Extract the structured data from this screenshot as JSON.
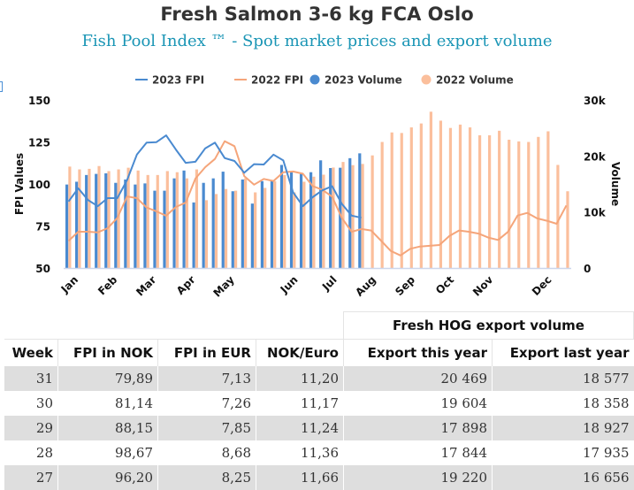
{
  "title": "Fresh Salmon 3-6 kg FCA Oslo",
  "subtitle": "Fish Pool Index ™ - Spot market prices and export volume",
  "chart_data": {
    "type": "bar+line",
    "x_unit": "week",
    "weeks": [
      1,
      2,
      3,
      4,
      5,
      6,
      7,
      8,
      9,
      10,
      11,
      12,
      13,
      14,
      15,
      16,
      17,
      18,
      19,
      20,
      21,
      22,
      23,
      24,
      25,
      26,
      27,
      28,
      29,
      30,
      31,
      32,
      33,
      34,
      35,
      36,
      37,
      38,
      39,
      40,
      41,
      42,
      43,
      44,
      45,
      46,
      47,
      48,
      49,
      50,
      51,
      52
    ],
    "month_labels": [
      "Jan",
      "Feb",
      "Mar",
      "Apr",
      "May",
      "Jun",
      "Jul",
      "Aug",
      "Sep",
      "Oct",
      "Nov",
      "Dec"
    ],
    "month_label_weeks": [
      1.5,
      5.5,
      9.5,
      13.5,
      17.5,
      24,
      28,
      32,
      36,
      40,
      44,
      50
    ],
    "ylabel": "FPI Values",
    "ylabel_right": "Volume",
    "ylim": [
      50,
      150
    ],
    "yticks": [
      "50",
      "75",
      "100",
      "125",
      "150"
    ],
    "ylim_right": [
      0,
      30000
    ],
    "yticks_right": [
      "0",
      "10k",
      "20k",
      "30k"
    ],
    "legend_position": "top",
    "series": [
      {
        "name": "2023 FPI",
        "kind": "line",
        "axis": "left",
        "color": "#4a8ad0",
        "values": [
          89.6,
          97.4,
          90.4,
          86.8,
          91.6,
          91.6,
          102.3,
          117.5,
          124.6,
          124.9,
          128.9,
          120.5,
          112.6,
          113.2,
          121.2,
          124.6,
          115.4,
          113.7,
          106.7,
          111.8,
          111.6,
          117.5,
          114.0,
          95.1,
          86.8,
          92.1,
          96.2,
          98.67,
          88.15,
          81.14,
          79.89
        ]
      },
      {
        "name": "2022 FPI",
        "kind": "line",
        "axis": "left",
        "color": "#f5a57a",
        "values": [
          66.1,
          71.6,
          71.6,
          71.2,
          73.7,
          79.8,
          92.6,
          91.6,
          86.0,
          83.7,
          81.1,
          86.3,
          88.9,
          103.2,
          110.0,
          114.9,
          125.4,
          122.5,
          104.7,
          99.6,
          103.0,
          101.8,
          107.0,
          107.4,
          106.1,
          98.8,
          96.5,
          92.5,
          79.8,
          71.6,
          73.2,
          72.3,
          66.3,
          60.2,
          57.5,
          61.4,
          62.8,
          63.2,
          63.7,
          69.0,
          72.3,
          71.6,
          70.5,
          68.1,
          66.7,
          71.4,
          81.2,
          82.8,
          79.5,
          78.1,
          76.3,
          87.2
        ]
      },
      {
        "name": "2023 Volume",
        "kind": "bar",
        "axis": "right",
        "color": "#4a8ad0",
        "values": [
          14900,
          15400,
          16600,
          16800,
          16900,
          15200,
          15800,
          14900,
          15100,
          13800,
          13800,
          16000,
          17400,
          11700,
          15200,
          16000,
          17200,
          13700,
          15800,
          11500,
          15500,
          15600,
          18400,
          17200,
          16800,
          17100,
          19220,
          17844,
          17898,
          19604,
          20469
        ]
      },
      {
        "name": "2022 Volume",
        "kind": "bar",
        "axis": "right",
        "color": "#fbbf9c",
        "values": [
          18100,
          17600,
          17700,
          18200,
          17300,
          17600,
          17900,
          17400,
          16600,
          16600,
          17300,
          17100,
          16000,
          17600,
          12100,
          13200,
          14100,
          13800,
          16000,
          13500,
          14300,
          15500,
          16600,
          13500,
          15400,
          16300,
          16656,
          17935,
          18927,
          18358,
          18577,
          20100,
          22500,
          24200,
          24100,
          25100,
          25800,
          27900,
          26300,
          25000,
          25600,
          25100,
          23700,
          23700,
          24500,
          22900,
          22600,
          22500,
          23400,
          24400,
          18400,
          13700
        ]
      }
    ]
  },
  "table": {
    "group_header": "Fresh HOG export volume",
    "columns": [
      "Week",
      "FPI in NOK",
      "FPI in EUR",
      "NOK/Euro",
      "Export this year",
      "Export last year"
    ],
    "rows": [
      [
        "31",
        "79,89",
        "7,13",
        "11,20",
        "20 469",
        "18 577"
      ],
      [
        "30",
        "81,14",
        "7,26",
        "11,17",
        "19 604",
        "18 358"
      ],
      [
        "29",
        "88,15",
        "7,85",
        "11,24",
        "17 898",
        "18 927"
      ],
      [
        "28",
        "98,67",
        "8,68",
        "11,36",
        "17 844",
        "17 935"
      ],
      [
        "27",
        "96,20",
        "8,25",
        "11,66",
        "19 220",
        "16 656"
      ]
    ]
  }
}
